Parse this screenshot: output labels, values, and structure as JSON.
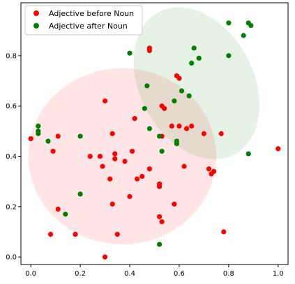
{
  "chart_data": {
    "type": "scatter",
    "title": "",
    "xlabel": "",
    "ylabel": "",
    "xlim": [
      -0.04,
      1.04
    ],
    "ylim": [
      -0.03,
      1.01
    ],
    "xticks": [
      0.0,
      0.2,
      0.4,
      0.6,
      0.8,
      1.0
    ],
    "yticks": [
      0.0,
      0.2,
      0.4,
      0.6,
      0.8
    ],
    "xtick_labels": [
      "0.0",
      "0.2",
      "0.4",
      "0.6",
      "0.8",
      "1.0"
    ],
    "ytick_labels": [
      "0.0",
      "0.2",
      "0.4",
      "0.6",
      "0.8"
    ],
    "grid": false,
    "legend_position": "upper-left",
    "series": [
      {
        "name": "Adjective before Noun",
        "color": "#ff0000",
        "points": [
          [
            0.0,
            0.47
          ],
          [
            0.09,
            0.42
          ],
          [
            0.08,
            0.09
          ],
          [
            0.11,
            0.19
          ],
          [
            0.11,
            0.48
          ],
          [
            0.18,
            0.09
          ],
          [
            0.24,
            0.4
          ],
          [
            0.28,
            0.4
          ],
          [
            0.29,
            0.36
          ],
          [
            0.3,
            0.0
          ],
          [
            0.3,
            0.62
          ],
          [
            0.32,
            0.31
          ],
          [
            0.33,
            0.21
          ],
          [
            0.33,
            0.49
          ],
          [
            0.34,
            0.41
          ],
          [
            0.34,
            0.39
          ],
          [
            0.35,
            0.09
          ],
          [
            0.38,
            0.38
          ],
          [
            0.4,
            0.24
          ],
          [
            0.41,
            0.42
          ],
          [
            0.42,
            0.55
          ],
          [
            0.43,
            0.31
          ],
          [
            0.45,
            0.32
          ],
          [
            0.48,
            0.35
          ],
          [
            0.48,
            0.83
          ],
          [
            0.48,
            0.82
          ],
          [
            0.52,
            0.28
          ],
          [
            0.52,
            0.29
          ],
          [
            0.52,
            0.16
          ],
          [
            0.53,
            0.14
          ],
          [
            0.53,
            0.48
          ],
          [
            0.53,
            0.6
          ],
          [
            0.54,
            0.59
          ],
          [
            0.57,
            0.52
          ],
          [
            0.58,
            0.21
          ],
          [
            0.59,
            0.72
          ],
          [
            0.6,
            0.52
          ],
          [
            0.6,
            0.71
          ],
          [
            0.62,
            0.36
          ],
          [
            0.63,
            0.51
          ],
          [
            0.65,
            0.52
          ],
          [
            0.7,
            0.49
          ],
          [
            0.72,
            0.35
          ],
          [
            0.73,
            0.33
          ],
          [
            0.74,
            0.34
          ],
          [
            0.77,
            0.49
          ],
          [
            0.78,
            0.1
          ],
          [
            1.0,
            0.43
          ]
        ]
      },
      {
        "name": "Adjective after Noun",
        "color": "#008000",
        "points": [
          [
            0.03,
            0.49
          ],
          [
            0.03,
            0.5
          ],
          [
            0.03,
            0.52
          ],
          [
            0.07,
            0.46
          ],
          [
            0.14,
            0.17
          ],
          [
            0.2,
            0.48
          ],
          [
            0.2,
            0.25
          ],
          [
            0.4,
            0.81
          ],
          [
            0.46,
            0.59
          ],
          [
            0.47,
            0.68
          ],
          [
            0.48,
            0.51
          ],
          [
            0.52,
            0.48
          ],
          [
            0.52,
            0.05
          ],
          [
            0.53,
            0.42
          ],
          [
            0.58,
            0.62
          ],
          [
            0.59,
            0.45
          ],
          [
            0.59,
            0.46
          ],
          [
            0.61,
            0.66
          ],
          [
            0.64,
            0.64
          ],
          [
            0.65,
            0.77
          ],
          [
            0.66,
            0.83
          ],
          [
            0.68,
            0.79
          ],
          [
            0.8,
            0.8
          ],
          [
            0.8,
            0.93
          ],
          [
            0.86,
            0.88
          ],
          [
            0.88,
            0.41
          ],
          [
            0.88,
            0.93
          ],
          [
            0.89,
            0.92
          ]
        ]
      }
    ],
    "ellipses": [
      {
        "color": "#ff0000",
        "opacity": 0.1,
        "center": [
          0.37,
          0.4
        ],
        "width": 0.76,
        "height": 0.7,
        "angle": 0
      },
      {
        "color": "#008000",
        "opacity": 0.1,
        "center": [
          0.67,
          0.69
        ],
        "width": 0.46,
        "height": 0.64,
        "angle": -28
      }
    ]
  }
}
